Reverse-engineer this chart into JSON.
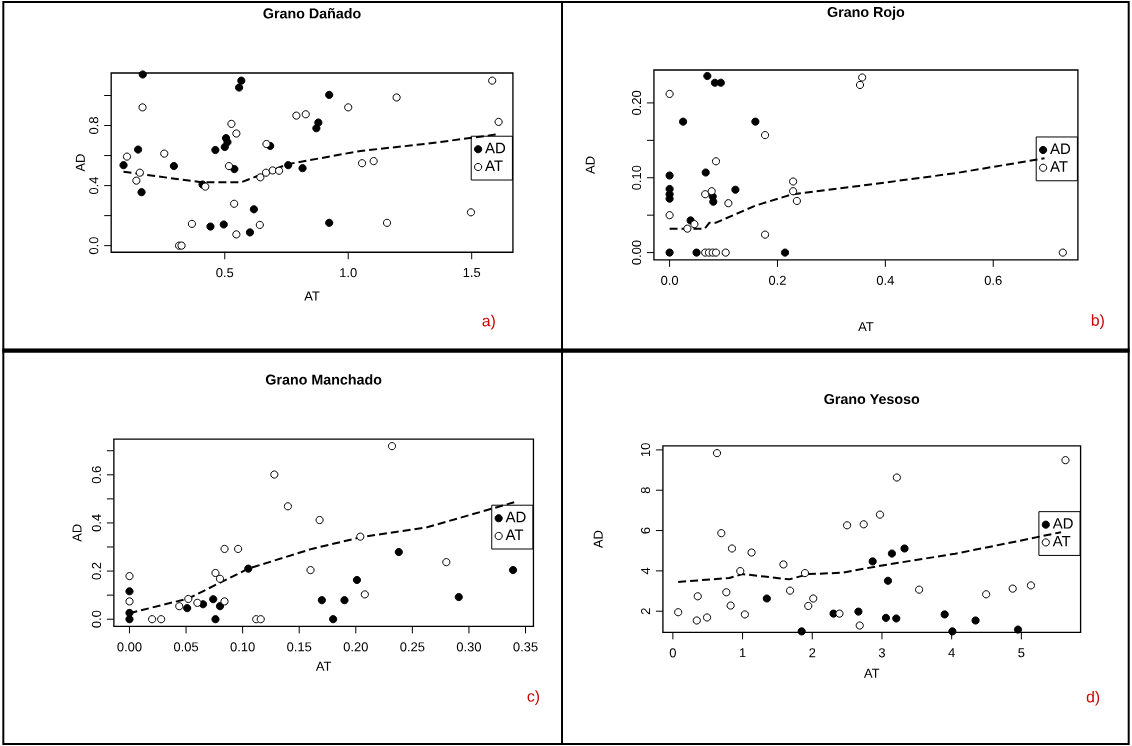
{
  "chart_data": [
    {
      "type": "scatter",
      "title": "Grano Dañado",
      "xlabel": "AT",
      "ylabel": "AD",
      "marker": "circle",
      "legend": "right",
      "xlim": [
        0.04,
        1.667
      ],
      "ylim": [
        -0.044,
        1.15
      ],
      "xticks": [
        {
          "value": 0.5,
          "label": "0.5"
        },
        {
          "value": 1.0,
          "label": "1.0"
        },
        {
          "value": 1.5,
          "label": "1.5"
        }
      ],
      "yticks": [
        {
          "value": 0.0,
          "label": "0.0"
        },
        {
          "value": 0.2,
          "label": null
        },
        {
          "value": 0.4,
          "label": "0.4"
        },
        {
          "value": 0.6,
          "label": null
        },
        {
          "value": 0.8,
          "label": "0.8"
        },
        {
          "value": 1.0,
          "label": null
        }
      ],
      "annotations": [
        "a)"
      ],
      "series": [
        {
          "name": "AD",
          "color": "#000000",
          "x": [
            0.09,
            0.149,
            0.168,
            0.163,
            0.294,
            0.41,
            0.462,
            0.442,
            0.496,
            0.5,
            0.505,
            0.511,
            0.539,
            0.558,
            0.567,
            0.602,
            0.618,
            0.684,
            0.757,
            0.815,
            0.871,
            0.879,
            0.923,
            0.923
          ],
          "values": [
            0.536,
            0.64,
            1.14,
            0.356,
            0.53,
            0.407,
            0.637,
            0.127,
            0.141,
            0.657,
            0.716,
            0.69,
            0.51,
            1.053,
            1.099,
            0.088,
            0.242,
            0.664,
            0.536,
            0.516,
            0.782,
            0.82,
            1.004,
            0.152
          ]
        },
        {
          "name": "AT",
          "color": "#ffffff",
          "x": [
            0.104,
            0.142,
            0.156,
            0.167,
            0.255,
            0.315,
            0.325,
            0.367,
            0.421,
            0.517,
            0.527,
            0.538,
            0.547,
            0.547,
            0.642,
            0.644,
            0.667,
            0.669,
            0.694,
            0.72,
            0.79,
            0.828,
            1.0,
            1.056,
            1.103,
            1.157,
            1.196,
            1.497,
            1.583,
            1.609
          ],
          "values": [
            0.593,
            0.433,
            0.486,
            0.921,
            0.613,
            0.0,
            0.0,
            0.145,
            0.393,
            0.53,
            0.811,
            0.279,
            0.747,
            0.075,
            0.138,
            0.455,
            0.486,
            0.677,
            0.501,
            0.499,
            0.866,
            0.875,
            0.921,
            0.549,
            0.563,
            0.152,
            0.987,
            0.222,
            1.099,
            0.824
          ]
        },
        {
          "type": "line",
          "color": "#000000",
          "line_style": "dashed",
          "marker": "none",
          "x": [
            0.09,
            0.406,
            0.567,
            0.755,
            1.05,
            1.32,
            1.602
          ],
          "values": [
            0.492,
            0.422,
            0.422,
            0.543,
            0.631,
            0.679,
            0.741
          ]
        }
      ]
    },
    {
      "type": "scatter",
      "title": "Grano Rojo",
      "xlabel": "AT",
      "ylabel": "AD",
      "marker": "circle",
      "legend": "right",
      "xlim": [
        -0.029,
        0.757
      ],
      "ylim": [
        -0.0098,
        0.244
      ],
      "xticks": [
        {
          "value": 0.0,
          "label": "0.0"
        },
        {
          "value": 0.2,
          "label": "0.2"
        },
        {
          "value": 0.4,
          "label": "0.4"
        },
        {
          "value": 0.6,
          "label": "0.6"
        }
      ],
      "yticks": [
        {
          "value": 0.0,
          "label": "0.00"
        },
        {
          "value": 0.05,
          "label": null
        },
        {
          "value": 0.1,
          "label": "0.10"
        },
        {
          "value": 0.15,
          "label": null
        },
        {
          "value": 0.2,
          "label": "0.20"
        }
      ],
      "annotations": [
        "b)"
      ],
      "series": [
        {
          "name": "AD",
          "color": "#000000",
          "x": [
            0,
            0,
            0,
            0,
            0,
            0.025,
            0.039,
            0.05,
            0.067,
            0.07,
            0.075,
            0.08,
            0.081,
            0.084,
            0.095,
            0.122,
            0.159,
            0.214
          ],
          "values": [
            0,
            0.103,
            0.085,
            0.078,
            0.072,
            0.175,
            0.043,
            0,
            0.107,
            0.236,
            null,
            0.075,
            0.068,
            0.227,
            0.227,
            0.084,
            0.175,
            0
          ]
        },
        {
          "name": "AT",
          "color": "#ffffff",
          "x": [
            0,
            0,
            0.033,
            0.046,
            0.066,
            0.078,
            0.066,
            0.073,
            0.08,
            0.086,
            0.086,
            0.104,
            0.109,
            0.177,
            0.177,
            0.229,
            0.229,
            0.236,
            0.353,
            0.357,
            0.729
          ],
          "values": [
            0.212,
            0.05,
            0.032,
            0.038,
            0.078,
            0.082,
            0,
            0,
            0,
            0,
            0.122,
            0,
            0.066,
            0.157,
            0.024,
            0.095,
            0.082,
            0.069,
            0.224,
            0.234,
            0
          ]
        },
        {
          "type": "line",
          "color": "#000000",
          "line_style": "dashed",
          "marker": "none",
          "x": [
            0,
            0.065,
            0.074,
            0.086,
            0.16,
            0.228,
            0.351,
            0.529,
            0.695
          ],
          "values": [
            0.032,
            0.032,
            0.04,
            0.04,
            0.063,
            0.078,
            0.089,
            0.106,
            0.126
          ]
        }
      ]
    },
    {
      "type": "scatter",
      "title": "Grano Manchado",
      "xlabel": "AT",
      "ylabel": "AD",
      "marker": "circle",
      "legend": "right",
      "xlim": [
        -0.0138,
        0.357
      ],
      "ylim": [
        -0.03,
        0.748
      ],
      "xticks": [
        {
          "value": 0.0,
          "label": "0.00"
        },
        {
          "value": 0.05,
          "label": "0.05"
        },
        {
          "value": 0.1,
          "label": "0.10"
        },
        {
          "value": 0.15,
          "label": "0.15"
        },
        {
          "value": 0.2,
          "label": "0.20"
        },
        {
          "value": 0.25,
          "label": "0.25"
        },
        {
          "value": 0.3,
          "label": "0.30"
        },
        {
          "value": 0.35,
          "label": "0.35"
        }
      ],
      "yticks": [
        {
          "value": 0.0,
          "label": "0.0"
        },
        {
          "value": 0.1,
          "label": null
        },
        {
          "value": 0.2,
          "label": "0.2"
        },
        {
          "value": 0.3,
          "label": null
        },
        {
          "value": 0.4,
          "label": "0.4"
        },
        {
          "value": 0.5,
          "label": null
        },
        {
          "value": 0.6,
          "label": "0.6"
        },
        {
          "value": 0.7,
          "label": null
        }
      ],
      "annotations": [
        "c)"
      ],
      "series": [
        {
          "name": "AD",
          "color": "#000000",
          "x": [
            0,
            0,
            0,
            0.051,
            0.065,
            0.074,
            0.076,
            0.08,
            0.105,
            0.17,
            0.18,
            0.19,
            0.201,
            0.238,
            0.29,
            0.291,
            0.339
          ],
          "values": [
            0,
            0.116,
            0.026,
            0.046,
            0.062,
            0.083,
            0,
            0.054,
            0.21,
            0.079,
            0,
            0.079,
            0.163,
            0.279,
            null,
            0.092,
            0.204
          ]
        },
        {
          "name": "AT",
          "color": "#ffffff",
          "x": [
            0,
            0,
            0.02,
            0.028,
            0.044,
            0.052,
            0.06,
            0.076,
            0.08,
            0.084,
            0.084,
            0.096,
            0.112,
            0.116,
            0.128,
            0.14,
            0.16,
            0.168,
            0.204,
            0.208,
            0.232,
            0.28
          ],
          "values": [
            0.179,
            0.074,
            0,
            0,
            0.054,
            0.084,
            0.068,
            0.192,
            0.168,
            0.292,
            0.074,
            0.292,
            0,
            0,
            0.601,
            0.469,
            0.204,
            0.412,
            0.343,
            0.103,
            0.719,
            0.237
          ]
        },
        {
          "type": "line",
          "color": "#000000",
          "line_style": "dashed",
          "marker": "none",
          "x": [
            0,
            0.052,
            0.105,
            0.161,
            0.205,
            0.263,
            0.34
          ],
          "values": [
            0.025,
            0.086,
            0.21,
            0.292,
            0.341,
            0.382,
            0.486
          ]
        }
      ]
    },
    {
      "type": "scatter",
      "title": "Grano Yesoso",
      "xlabel": "AT",
      "ylabel": "AD",
      "marker": "circle",
      "legend": "right",
      "xlim": [
        -0.143,
        5.85
      ],
      "ylim": [
        0.95,
        10.2
      ],
      "xticks": [
        0,
        1,
        2,
        3,
        4,
        5
      ],
      "yticks": [
        2,
        4,
        6,
        8,
        10
      ],
      "annotations": [
        "d)"
      ],
      "series": [
        {
          "name": "AD",
          "color": "#000000",
          "x": [
            1.348,
            1.848,
            1.91,
            2.305,
            2.662,
            2.867,
            3.057,
            3.086,
            3.143,
            3.205,
            3.324,
            3.9,
            4.01,
            4.343,
            4.952
          ],
          "values": [
            2.63,
            1.0,
            null,
            1.88,
            1.98,
            4.47,
            1.67,
            3.51,
            4.86,
            1.64,
            5.11,
            1.84,
            1.0,
            1.54,
            1.09
          ]
        },
        {
          "name": "AT",
          "color": "#ffffff",
          "x": [
            0.076,
            0.343,
            0.357,
            0.49,
            0.633,
            0.695,
            0.767,
            0.829,
            0.848,
            0.967,
            1.033,
            1.129,
            1.586,
            1.671,
            1.681,
            1.895,
            1.943,
            2.014,
            2.39,
            2.5,
            2.681,
            2.738,
            2.971,
            3.214,
            3.533,
            4.495,
            4.876,
            5.138,
            5.633
          ],
          "values": [
            1.95,
            1.54,
            2.74,
            1.69,
            9.84,
            5.87,
            2.94,
            2.28,
            5.11,
            3.99,
            1.84,
            4.91,
            4.32,
            null,
            3.02,
            3.89,
            2.26,
            2.63,
            1.88,
            6.26,
            1.29,
            6.31,
            6.79,
            8.63,
            3.07,
            2.84,
            3.12,
            3.28,
            9.49
          ]
        },
        {
          "type": "line",
          "color": "#000000",
          "line_style": "dashed",
          "marker": "none",
          "x": [
            0.076,
            0.81,
            1.0,
            1.667,
            1.95,
            2.43,
            3.0,
            4.05,
            5.0,
            5.57
          ],
          "values": [
            3.45,
            3.65,
            3.84,
            3.58,
            3.84,
            3.91,
            4.27,
            4.85,
            5.51,
            5.92
          ]
        }
      ]
    }
  ]
}
